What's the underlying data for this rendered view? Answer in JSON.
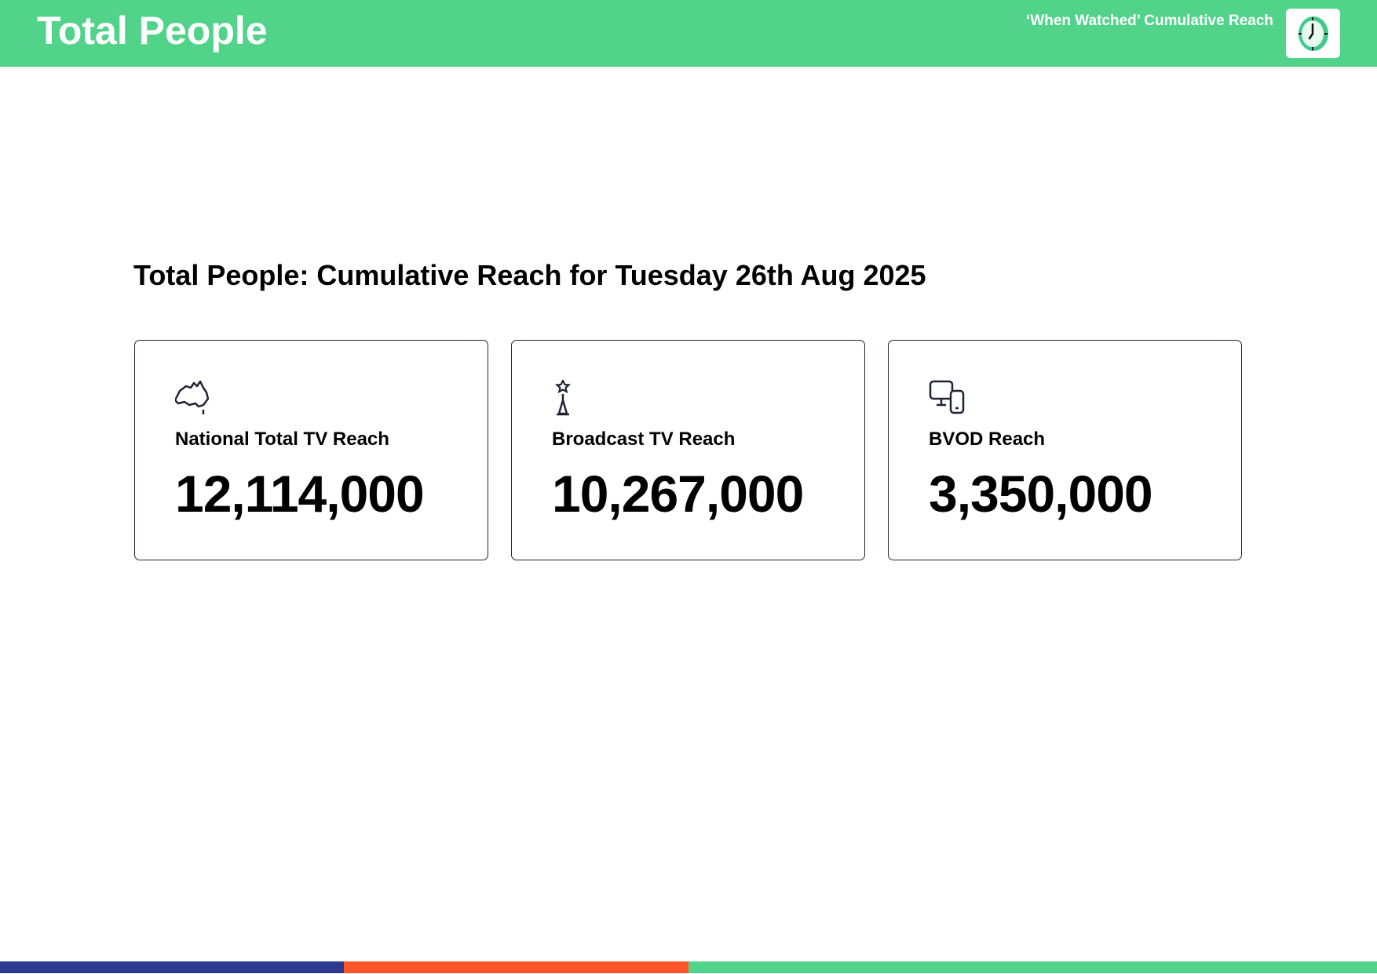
{
  "header": {
    "title": "Total People",
    "subtitle": "‘When Watched’ Cumulative Reach",
    "logo_icon": "clock-icon"
  },
  "main": {
    "heading": "Total People: Cumulative Reach for Tuesday 26th Aug 2025",
    "cards": [
      {
        "icon": "australia-map-icon",
        "label": "National Total TV Reach",
        "value": "12,114,000"
      },
      {
        "icon": "broadcast-tower-icon",
        "label": "Broadcast TV Reach",
        "value": "10,267,000"
      },
      {
        "icon": "devices-icon",
        "label": "BVOD Reach",
        "value": "3,350,000"
      }
    ]
  },
  "footer": {
    "colors": [
      "#2b3990",
      "#ff5529",
      "#51d38a"
    ]
  },
  "colors": {
    "brand_green": "#51d38a",
    "card_border": "#1e2433"
  }
}
